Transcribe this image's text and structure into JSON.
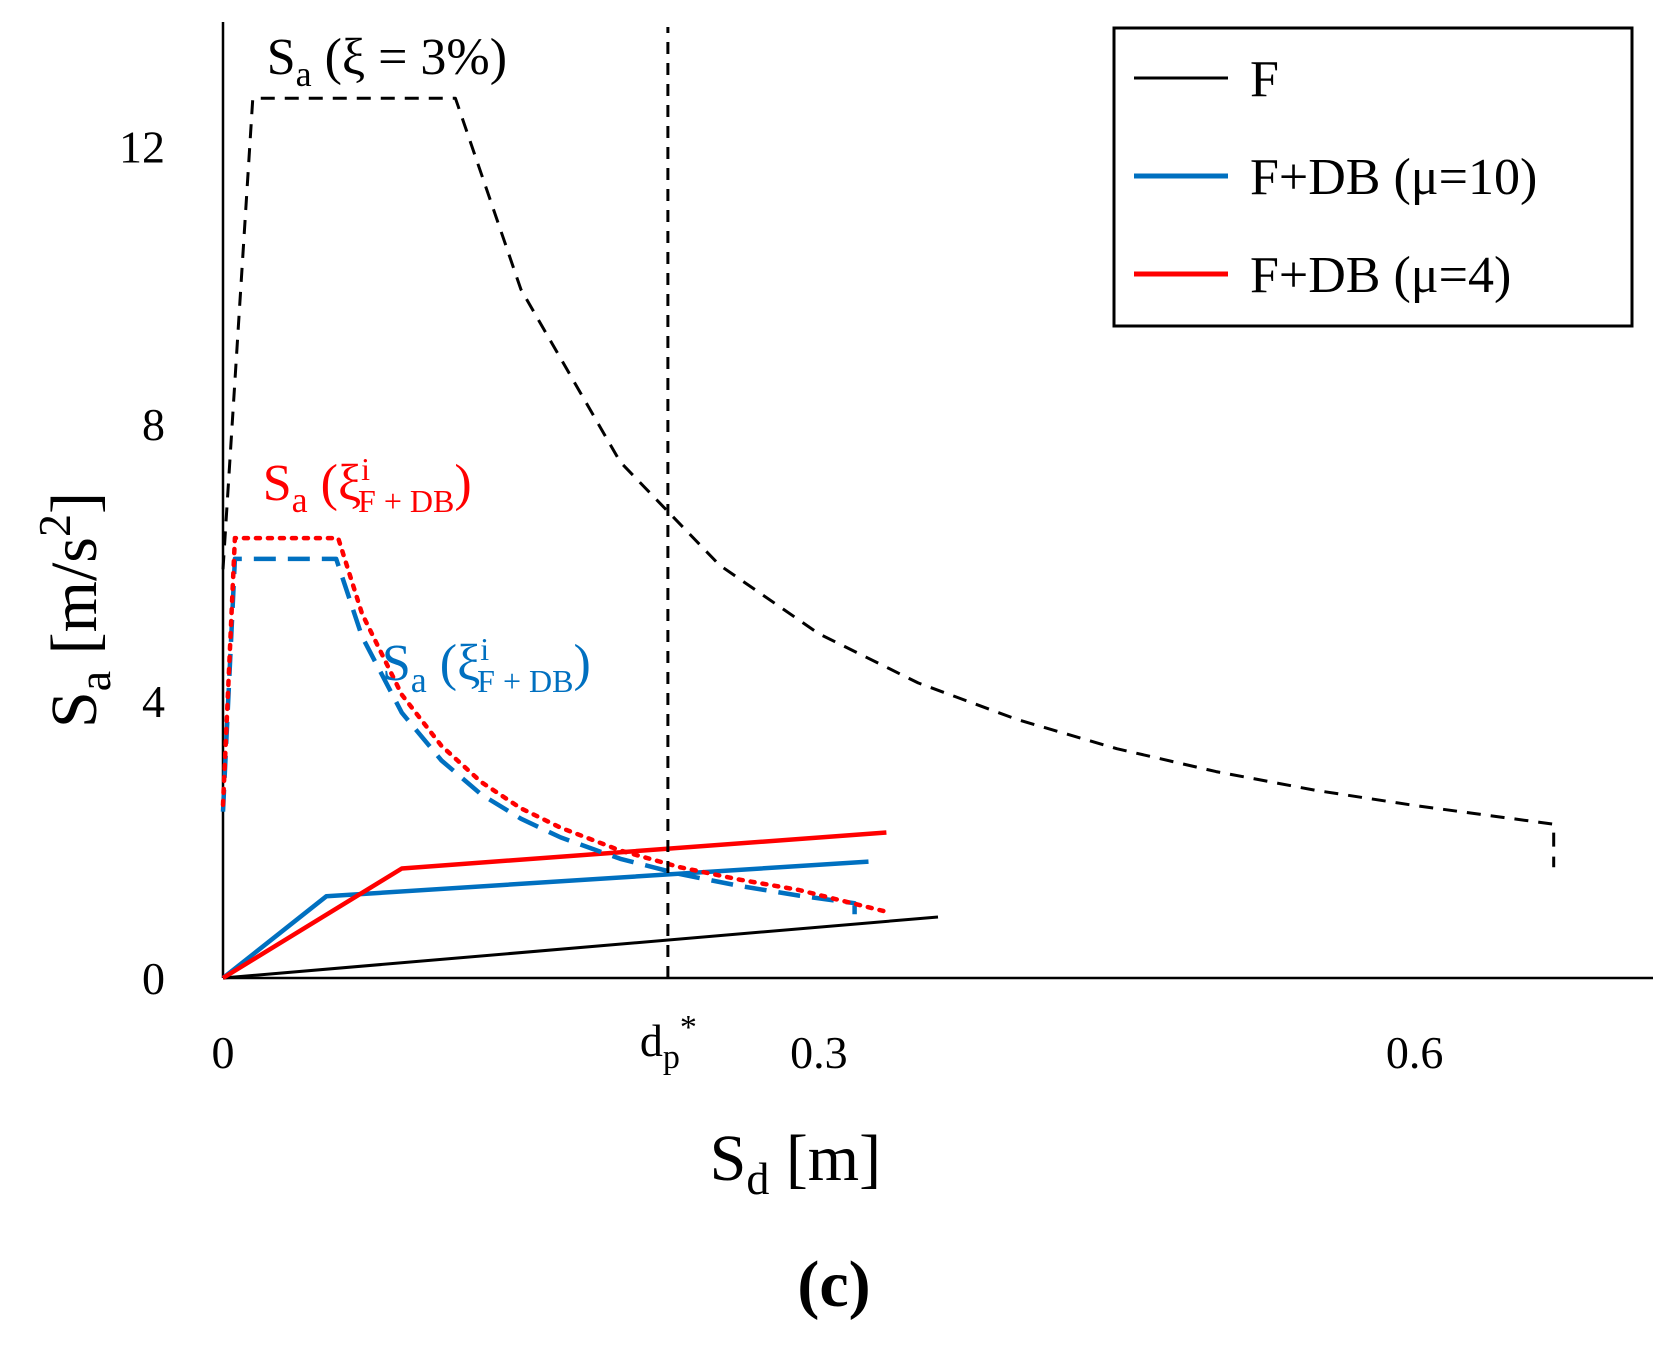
{
  "figure_label": "(c)",
  "chart_data": {
    "type": "line",
    "title": "",
    "xlabel": {
      "main": "S",
      "sub": "d",
      "rest": " [m]"
    },
    "ylabel": {
      "main": "S",
      "sub": "a",
      "rest": " [m/s",
      "sup": "2",
      "end": "]"
    },
    "xlim": [
      0,
      0.72
    ],
    "ylim": [
      0,
      13.8
    ],
    "x_ticks": [
      {
        "value": 0,
        "label": "0"
      },
      {
        "value": 0.3,
        "label": "0.3"
      },
      {
        "value": 0.6,
        "label": "0.6"
      }
    ],
    "x_marker": {
      "value": 0.224,
      "label": "d",
      "sub": "p",
      "sup": "*"
    },
    "y_ticks": [
      {
        "value": 0,
        "label": "0"
      },
      {
        "value": 4,
        "label": "4"
      },
      {
        "value": 8,
        "label": "8"
      },
      {
        "value": 12,
        "label": "12"
      }
    ],
    "grid": false,
    "legend": {
      "position": "top-right",
      "entries": [
        {
          "label": "F",
          "color": "#000000"
        },
        {
          "label": "F+DB (μ=10)",
          "color": "#0070C0"
        },
        {
          "label": "F+DB (μ=4)",
          "color": "#FF0000"
        }
      ]
    },
    "annotations": [
      {
        "id": "sa3",
        "main": "S",
        "sub": "a",
        "rest": " (ξ = 3%)",
        "color": "#000000",
        "x": 0.022,
        "y": 13.05
      },
      {
        "id": "sa-red",
        "main": "S",
        "sub": "a",
        "open": " (ξ",
        "sup": "i",
        "sub2": "F + DB",
        "close": ")",
        "color": "#FF0000",
        "x": 0.02,
        "y": 6.9
      },
      {
        "id": "sa-blue",
        "main": "S",
        "sub": "a",
        "open": " (ξ",
        "sup": "i",
        "sub2": "F + DB",
        "close": ")",
        "color": "#0070C0",
        "x": 0.08,
        "y": 4.3
      }
    ],
    "series": [
      {
        "name": "F capacity",
        "color": "#000000",
        "style": "solid",
        "width": 3,
        "x": [
          0,
          0.36
        ],
        "y": [
          0,
          0.88
        ]
      },
      {
        "name": "F+DB (μ=10) capacity",
        "color": "#0070C0",
        "style": "solid",
        "width": 4.5,
        "x": [
          0,
          0.052,
          0.325
        ],
        "y": [
          0,
          1.18,
          1.68
        ]
      },
      {
        "name": "F+DB (μ=4) capacity",
        "color": "#FF0000",
        "style": "solid",
        "width": 4.5,
        "x": [
          0,
          0.09,
          0.334
        ],
        "y": [
          0,
          1.58,
          2.1
        ]
      },
      {
        "name": "Sa (ξ = 3%) demand spectrum",
        "color": "#000000",
        "style": "dashed",
        "width": 3,
        "x": [
          0,
          0.015,
          0.117,
          0.15,
          0.2,
          0.25,
          0.3,
          0.35,
          0.4,
          0.45,
          0.5,
          0.55,
          0.6,
          0.67,
          0.67
        ],
        "y": [
          5.9,
          12.7,
          12.7,
          9.94,
          7.45,
          5.96,
          4.97,
          4.26,
          3.73,
          3.31,
          2.98,
          2.71,
          2.49,
          2.22,
          1.6
        ]
      },
      {
        "name": "Sa (ξi F+DB) μ=10 demand spectrum",
        "color": "#0070C0",
        "style": "dashed",
        "width": 4.5,
        "x": [
          0,
          0.006,
          0.057,
          0.07,
          0.09,
          0.11,
          0.13,
          0.15,
          0.17,
          0.2,
          0.23,
          0.26,
          0.29,
          0.318,
          0.318
        ],
        "y": [
          2.4,
          6.05,
          6.05,
          4.93,
          3.83,
          3.14,
          2.65,
          2.3,
          2.03,
          1.72,
          1.5,
          1.33,
          1.19,
          1.08,
          0.92
        ]
      },
      {
        "name": "Sa (ξi F+DB) μ=4 demand spectrum",
        "color": "#FF0000",
        "style": "dotted",
        "width": 4.5,
        "x": [
          0,
          0.006,
          0.058,
          0.07,
          0.09,
          0.11,
          0.13,
          0.15,
          0.17,
          0.2,
          0.23,
          0.26,
          0.29,
          0.335
        ],
        "y": [
          2.5,
          6.35,
          6.35,
          5.26,
          4.09,
          3.35,
          2.83,
          2.45,
          2.17,
          1.84,
          1.6,
          1.42,
          1.27,
          0.95
        ]
      }
    ]
  }
}
